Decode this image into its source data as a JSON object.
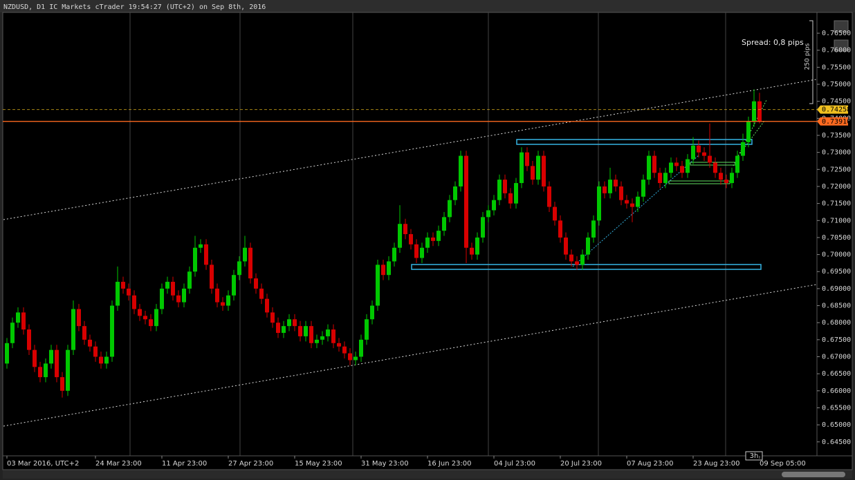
{
  "chart_data": {
    "type": "candlestick",
    "title": "NZDUSD, D1 IC Markets cTrader 19:54:27 (UTC+2) on Sep 8th, 2016",
    "spread_label": "Spread: 0,8 pips",
    "range_label": "250 pips",
    "timeframe_badge": "3h",
    "up_color": "#00c800",
    "down_color": "#d80000",
    "ylim": [
      0.6409,
      0.7711
    ],
    "yticks": [
      {
        "value": 0.765,
        "label": "0.76500"
      },
      {
        "value": 0.76,
        "label": "0.76000"
      },
      {
        "value": 0.755,
        "label": "0.75500"
      },
      {
        "value": 0.75,
        "label": "0.75000"
      },
      {
        "value": 0.745,
        "label": "0.74500"
      },
      {
        "value": 0.74,
        "label": "0.74000"
      },
      {
        "value": 0.735,
        "label": "0.73500"
      },
      {
        "value": 0.73,
        "label": "0.73000"
      },
      {
        "value": 0.725,
        "label": "0.72500"
      },
      {
        "value": 0.72,
        "label": "0.72000"
      },
      {
        "value": 0.715,
        "label": "0.71500"
      },
      {
        "value": 0.71,
        "label": "0.71000"
      },
      {
        "value": 0.705,
        "label": "0.70500"
      },
      {
        "value": 0.7,
        "label": "0.70000"
      },
      {
        "value": 0.695,
        "label": "0.69500"
      },
      {
        "value": 0.69,
        "label": "0.69000"
      },
      {
        "value": 0.685,
        "label": "0.68500"
      },
      {
        "value": 0.68,
        "label": "0.68000"
      },
      {
        "value": 0.675,
        "label": "0.67500"
      },
      {
        "value": 0.67,
        "label": "0.67000"
      },
      {
        "value": 0.665,
        "label": "0.66500"
      },
      {
        "value": 0.66,
        "label": "0.66000"
      },
      {
        "value": 0.655,
        "label": "0.65500"
      },
      {
        "value": 0.65,
        "label": "0.65000"
      },
      {
        "value": 0.645,
        "label": "0.64500"
      }
    ],
    "x_labels": [
      "03 Mar 2016, UTC+2",
      "24 Mar 23:00",
      "11 Apr 23:00",
      "27 Apr 23:00",
      "15 May 23:00",
      "31 May 23:00",
      "16 Jun 23:00",
      "04 Jul 23:00",
      "20 Jul 23:00",
      "07 Aug 23:00",
      "23 Aug 23:00",
      "09 Sep 05:00"
    ],
    "price_lines": [
      {
        "value": 0.74258,
        "label": "0.74258",
        "color": "#f0c020",
        "style": "dashed"
      },
      {
        "value": 0.7391,
        "label": "0.73910",
        "color": "#ff6a20",
        "style": "solid"
      }
    ],
    "ohlc": [
      [
        0.668,
        0.6755,
        0.6665,
        0.674
      ],
      [
        0.674,
        0.6815,
        0.6725,
        0.68
      ],
      [
        0.68,
        0.6845,
        0.6785,
        0.683
      ],
      [
        0.683,
        0.6845,
        0.6765,
        0.678
      ],
      [
        0.678,
        0.6795,
        0.6705,
        0.672
      ],
      [
        0.672,
        0.6735,
        0.6655,
        0.667
      ],
      [
        0.667,
        0.6685,
        0.6625,
        0.664
      ],
      [
        0.664,
        0.6695,
        0.6625,
        0.668
      ],
      [
        0.668,
        0.6735,
        0.6665,
        0.672
      ],
      [
        0.672,
        0.6735,
        0.6625,
        0.664
      ],
      [
        0.664,
        0.6655,
        0.658,
        0.66
      ],
      [
        0.66,
        0.6735,
        0.6585,
        0.672
      ],
      [
        0.672,
        0.6865,
        0.6705,
        0.684
      ],
      [
        0.684,
        0.6855,
        0.6775,
        0.679
      ],
      [
        0.679,
        0.6805,
        0.6735,
        0.675
      ],
      [
        0.675,
        0.6765,
        0.6715,
        0.673
      ],
      [
        0.673,
        0.6745,
        0.6685,
        0.67
      ],
      [
        0.67,
        0.6715,
        0.6665,
        0.668
      ],
      [
        0.668,
        0.6715,
        0.6665,
        0.67
      ],
      [
        0.67,
        0.6865,
        0.6685,
        0.685
      ],
      [
        0.685,
        0.6965,
        0.6835,
        0.692
      ],
      [
        0.692,
        0.6935,
        0.6885,
        0.69
      ],
      [
        0.69,
        0.6915,
        0.6865,
        0.688
      ],
      [
        0.688,
        0.6895,
        0.6825,
        0.684
      ],
      [
        0.684,
        0.6855,
        0.6805,
        0.682
      ],
      [
        0.682,
        0.6835,
        0.6795,
        0.681
      ],
      [
        0.681,
        0.6825,
        0.6775,
        0.679
      ],
      [
        0.679,
        0.6855,
        0.6775,
        0.684
      ],
      [
        0.684,
        0.6915,
        0.6825,
        0.69
      ],
      [
        0.69,
        0.6935,
        0.6885,
        0.692
      ],
      [
        0.692,
        0.6935,
        0.6865,
        0.688
      ],
      [
        0.688,
        0.6895,
        0.6845,
        0.686
      ],
      [
        0.686,
        0.6915,
        0.6845,
        0.69
      ],
      [
        0.69,
        0.6965,
        0.6885,
        0.695
      ],
      [
        0.695,
        0.7055,
        0.6935,
        0.702
      ],
      [
        0.702,
        0.7045,
        0.7005,
        0.703
      ],
      [
        0.703,
        0.7045,
        0.6955,
        0.697
      ],
      [
        0.697,
        0.6985,
        0.6885,
        0.69
      ],
      [
        0.69,
        0.6915,
        0.6845,
        0.686
      ],
      [
        0.686,
        0.6875,
        0.6835,
        0.685
      ],
      [
        0.685,
        0.6895,
        0.6835,
        0.688
      ],
      [
        0.688,
        0.6955,
        0.6865,
        0.694
      ],
      [
        0.694,
        0.6995,
        0.6925,
        0.698
      ],
      [
        0.698,
        0.7055,
        0.6965,
        0.702
      ],
      [
        0.702,
        0.7035,
        0.6915,
        0.693
      ],
      [
        0.693,
        0.6945,
        0.6885,
        0.69
      ],
      [
        0.69,
        0.6915,
        0.6855,
        0.687
      ],
      [
        0.687,
        0.6885,
        0.6815,
        0.683
      ],
      [
        0.683,
        0.6845,
        0.6785,
        0.68
      ],
      [
        0.68,
        0.6815,
        0.6755,
        0.677
      ],
      [
        0.677,
        0.6805,
        0.6755,
        0.679
      ],
      [
        0.679,
        0.6825,
        0.6775,
        0.681
      ],
      [
        0.681,
        0.6825,
        0.6775,
        0.679
      ],
      [
        0.679,
        0.6805,
        0.6745,
        0.676
      ],
      [
        0.676,
        0.6805,
        0.6745,
        0.679
      ],
      [
        0.679,
        0.6805,
        0.6725,
        0.674
      ],
      [
        0.674,
        0.6765,
        0.6725,
        0.675
      ],
      [
        0.675,
        0.6775,
        0.6735,
        0.676
      ],
      [
        0.676,
        0.6795,
        0.6745,
        0.678
      ],
      [
        0.678,
        0.6795,
        0.6725,
        0.674
      ],
      [
        0.674,
        0.6755,
        0.6715,
        0.673
      ],
      [
        0.673,
        0.6745,
        0.6695,
        0.671
      ],
      [
        0.671,
        0.6725,
        0.6675,
        0.669
      ],
      [
        0.669,
        0.6715,
        0.6675,
        0.67
      ],
      [
        0.67,
        0.6765,
        0.6685,
        0.675
      ],
      [
        0.675,
        0.6825,
        0.6735,
        0.681
      ],
      [
        0.681,
        0.6865,
        0.6795,
        0.685
      ],
      [
        0.685,
        0.6985,
        0.6835,
        0.697
      ],
      [
        0.697,
        0.6985,
        0.6925,
        0.694
      ],
      [
        0.694,
        0.6995,
        0.6925,
        0.698
      ],
      [
        0.698,
        0.7035,
        0.6965,
        0.702
      ],
      [
        0.702,
        0.7145,
        0.7005,
        0.709
      ],
      [
        0.709,
        0.7105,
        0.7045,
        0.706
      ],
      [
        0.706,
        0.7075,
        0.7015,
        0.703
      ],
      [
        0.703,
        0.7045,
        0.6975,
        0.699
      ],
      [
        0.699,
        0.7035,
        0.6975,
        0.702
      ],
      [
        0.702,
        0.7065,
        0.7005,
        0.705
      ],
      [
        0.705,
        0.7065,
        0.7025,
        0.704
      ],
      [
        0.704,
        0.7085,
        0.7025,
        0.707
      ],
      [
        0.707,
        0.7125,
        0.7055,
        0.711
      ],
      [
        0.711,
        0.7175,
        0.7095,
        0.716
      ],
      [
        0.716,
        0.7215,
        0.7145,
        0.72
      ],
      [
        0.72,
        0.7305,
        0.7185,
        0.729
      ],
      [
        0.729,
        0.7305,
        0.6975,
        0.702
      ],
      [
        0.702,
        0.7035,
        0.6985,
        0.7
      ],
      [
        0.7,
        0.7065,
        0.6985,
        0.705
      ],
      [
        0.705,
        0.7125,
        0.7035,
        0.711
      ],
      [
        0.711,
        0.7145,
        0.7095,
        0.713
      ],
      [
        0.713,
        0.7175,
        0.7115,
        0.716
      ],
      [
        0.716,
        0.7235,
        0.7145,
        0.722
      ],
      [
        0.722,
        0.7235,
        0.7165,
        0.718
      ],
      [
        0.718,
        0.7195,
        0.7135,
        0.715
      ],
      [
        0.715,
        0.7225,
        0.7135,
        0.721
      ],
      [
        0.721,
        0.7315,
        0.7195,
        0.73
      ],
      [
        0.73,
        0.7315,
        0.7245,
        0.726
      ],
      [
        0.726,
        0.7275,
        0.7205,
        0.722
      ],
      [
        0.722,
        0.7305,
        0.7205,
        0.729
      ],
      [
        0.729,
        0.7305,
        0.7185,
        0.72
      ],
      [
        0.72,
        0.7215,
        0.7125,
        0.714
      ],
      [
        0.714,
        0.7155,
        0.7085,
        0.71
      ],
      [
        0.71,
        0.7115,
        0.7035,
        0.705
      ],
      [
        0.705,
        0.7065,
        0.6985,
        0.7
      ],
      [
        0.7,
        0.7015,
        0.6965,
        0.698
      ],
      [
        0.698,
        0.6995,
        0.6955,
        0.697
      ],
      [
        0.697,
        0.7015,
        0.6955,
        0.7
      ],
      [
        0.7,
        0.7065,
        0.6985,
        0.705
      ],
      [
        0.705,
        0.7115,
        0.7035,
        0.71
      ],
      [
        0.71,
        0.7215,
        0.7085,
        0.72
      ],
      [
        0.72,
        0.7215,
        0.7165,
        0.718
      ],
      [
        0.718,
        0.7255,
        0.7165,
        0.722
      ],
      [
        0.722,
        0.7235,
        0.7185,
        0.72
      ],
      [
        0.72,
        0.7215,
        0.7145,
        0.716
      ],
      [
        0.716,
        0.7175,
        0.7135,
        0.715
      ],
      [
        0.715,
        0.7165,
        0.7095,
        0.714
      ],
      [
        0.714,
        0.7185,
        0.7125,
        0.717
      ],
      [
        0.717,
        0.7235,
        0.7155,
        0.722
      ],
      [
        0.722,
        0.7305,
        0.7205,
        0.729
      ],
      [
        0.729,
        0.7305,
        0.7225,
        0.724
      ],
      [
        0.724,
        0.7255,
        0.7195,
        0.721
      ],
      [
        0.721,
        0.7255,
        0.7195,
        0.724
      ],
      [
        0.724,
        0.7285,
        0.7225,
        0.727
      ],
      [
        0.727,
        0.7285,
        0.7245,
        0.726
      ],
      [
        0.726,
        0.7275,
        0.7225,
        0.724
      ],
      [
        0.724,
        0.7295,
        0.7225,
        0.728
      ],
      [
        0.728,
        0.7345,
        0.7265,
        0.732
      ],
      [
        0.732,
        0.7335,
        0.7285,
        0.73
      ],
      [
        0.73,
        0.7315,
        0.7275,
        0.729
      ],
      [
        0.729,
        0.7385,
        0.7255,
        0.727
      ],
      [
        0.727,
        0.7285,
        0.7225,
        0.724
      ],
      [
        0.724,
        0.7255,
        0.7205,
        0.722
      ],
      [
        0.722,
        0.7235,
        0.7195,
        0.721
      ],
      [
        0.721,
        0.7255,
        0.7195,
        0.724
      ],
      [
        0.724,
        0.7305,
        0.7225,
        0.729
      ],
      [
        0.729,
        0.7355,
        0.7275,
        0.733
      ],
      [
        0.733,
        0.7405,
        0.7315,
        0.739
      ],
      [
        0.739,
        0.7485,
        0.7375,
        0.745
      ],
      [
        0.745,
        0.7475,
        0.7385,
        0.7391
      ]
    ]
  }
}
